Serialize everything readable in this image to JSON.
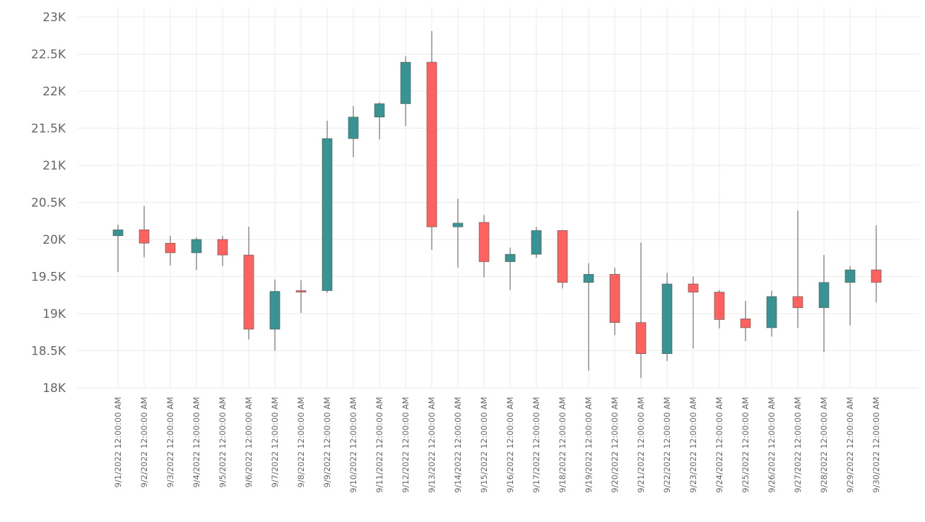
{
  "chart_data": {
    "type": "candlestick",
    "title": "",
    "xlabel": "",
    "ylabel": "",
    "ylim": [
      18000,
      23000
    ],
    "yticks": [
      18000,
      18500,
      19000,
      19500,
      20000,
      20500,
      21000,
      21500,
      22000,
      22500,
      23000
    ],
    "ytick_labels": [
      "18K",
      "18.5K",
      "19K",
      "19.5K",
      "20K",
      "20.5K",
      "21K",
      "21.5K",
      "22K",
      "22.5K",
      "23K"
    ],
    "grid": true,
    "colors": {
      "up": "#3a9393",
      "down": "#fd625e",
      "wick": "#555555",
      "grid": "#ebebeb",
      "tick_text": "#666666"
    },
    "x": [
      "9/1/2022 12:00:00 AM",
      "9/2/2022 12:00:00 AM",
      "9/3/2022 12:00:00 AM",
      "9/4/2022 12:00:00 AM",
      "9/5/2022 12:00:00 AM",
      "9/6/2022 12:00:00 AM",
      "9/7/2022 12:00:00 AM",
      "9/8/2022 12:00:00 AM",
      "9/9/2022 12:00:00 AM",
      "9/10/2022 12:00:00 AM",
      "9/11/2022 12:00:00 AM",
      "9/12/2022 12:00:00 AM",
      "9/13/2022 12:00:00 AM",
      "9/14/2022 12:00:00 AM",
      "9/15/2022 12:00:00 AM",
      "9/16/2022 12:00:00 AM",
      "9/17/2022 12:00:00 AM",
      "9/18/2022 12:00:00 AM",
      "9/19/2022 12:00:00 AM",
      "9/20/2022 12:00:00 AM",
      "9/21/2022 12:00:00 AM",
      "9/22/2022 12:00:00 AM",
      "9/23/2022 12:00:00 AM",
      "9/24/2022 12:00:00 AM",
      "9/25/2022 12:00:00 AM",
      "9/26/2022 12:00:00 AM",
      "9/27/2022 12:00:00 AM",
      "9/28/2022 12:00:00 AM",
      "9/29/2022 12:00:00 AM",
      "9/30/2022 12:00:00 AM"
    ],
    "open": [
      20050,
      20130,
      19950,
      19820,
      20000,
      19790,
      18790,
      19310,
      19310,
      21360,
      21650,
      21830,
      22390,
      20170,
      20230,
      19700,
      19800,
      20120,
      19420,
      19530,
      18880,
      18460,
      19400,
      19290,
      18930,
      18810,
      19230,
      19080,
      19420,
      19590
    ],
    "high": [
      20200,
      20450,
      20050,
      20030,
      20050,
      20170,
      19460,
      19450,
      21600,
      21800,
      21850,
      22470,
      22810,
      20550,
      20330,
      19890,
      20170,
      20130,
      19680,
      19620,
      19960,
      19550,
      19500,
      19320,
      19170,
      19310,
      20390,
      19790,
      19640,
      20190
    ],
    "low": [
      19560,
      19760,
      19650,
      19590,
      19640,
      18650,
      18500,
      19010,
      19280,
      21110,
      21350,
      21530,
      19860,
      19620,
      19490,
      19320,
      19750,
      19340,
      18230,
      18710,
      18130,
      18360,
      18530,
      18800,
      18630,
      18690,
      18810,
      18480,
      18840,
      19150
    ],
    "close": [
      20130,
      19950,
      19820,
      20000,
      19790,
      18790,
      19300,
      19290,
      21360,
      21650,
      21830,
      22390,
      20170,
      20220,
      19700,
      19800,
      20120,
      19420,
      19530,
      18880,
      18460,
      19400,
      19290,
      18920,
      18810,
      19230,
      19080,
      19420,
      19590,
      19420
    ]
  }
}
